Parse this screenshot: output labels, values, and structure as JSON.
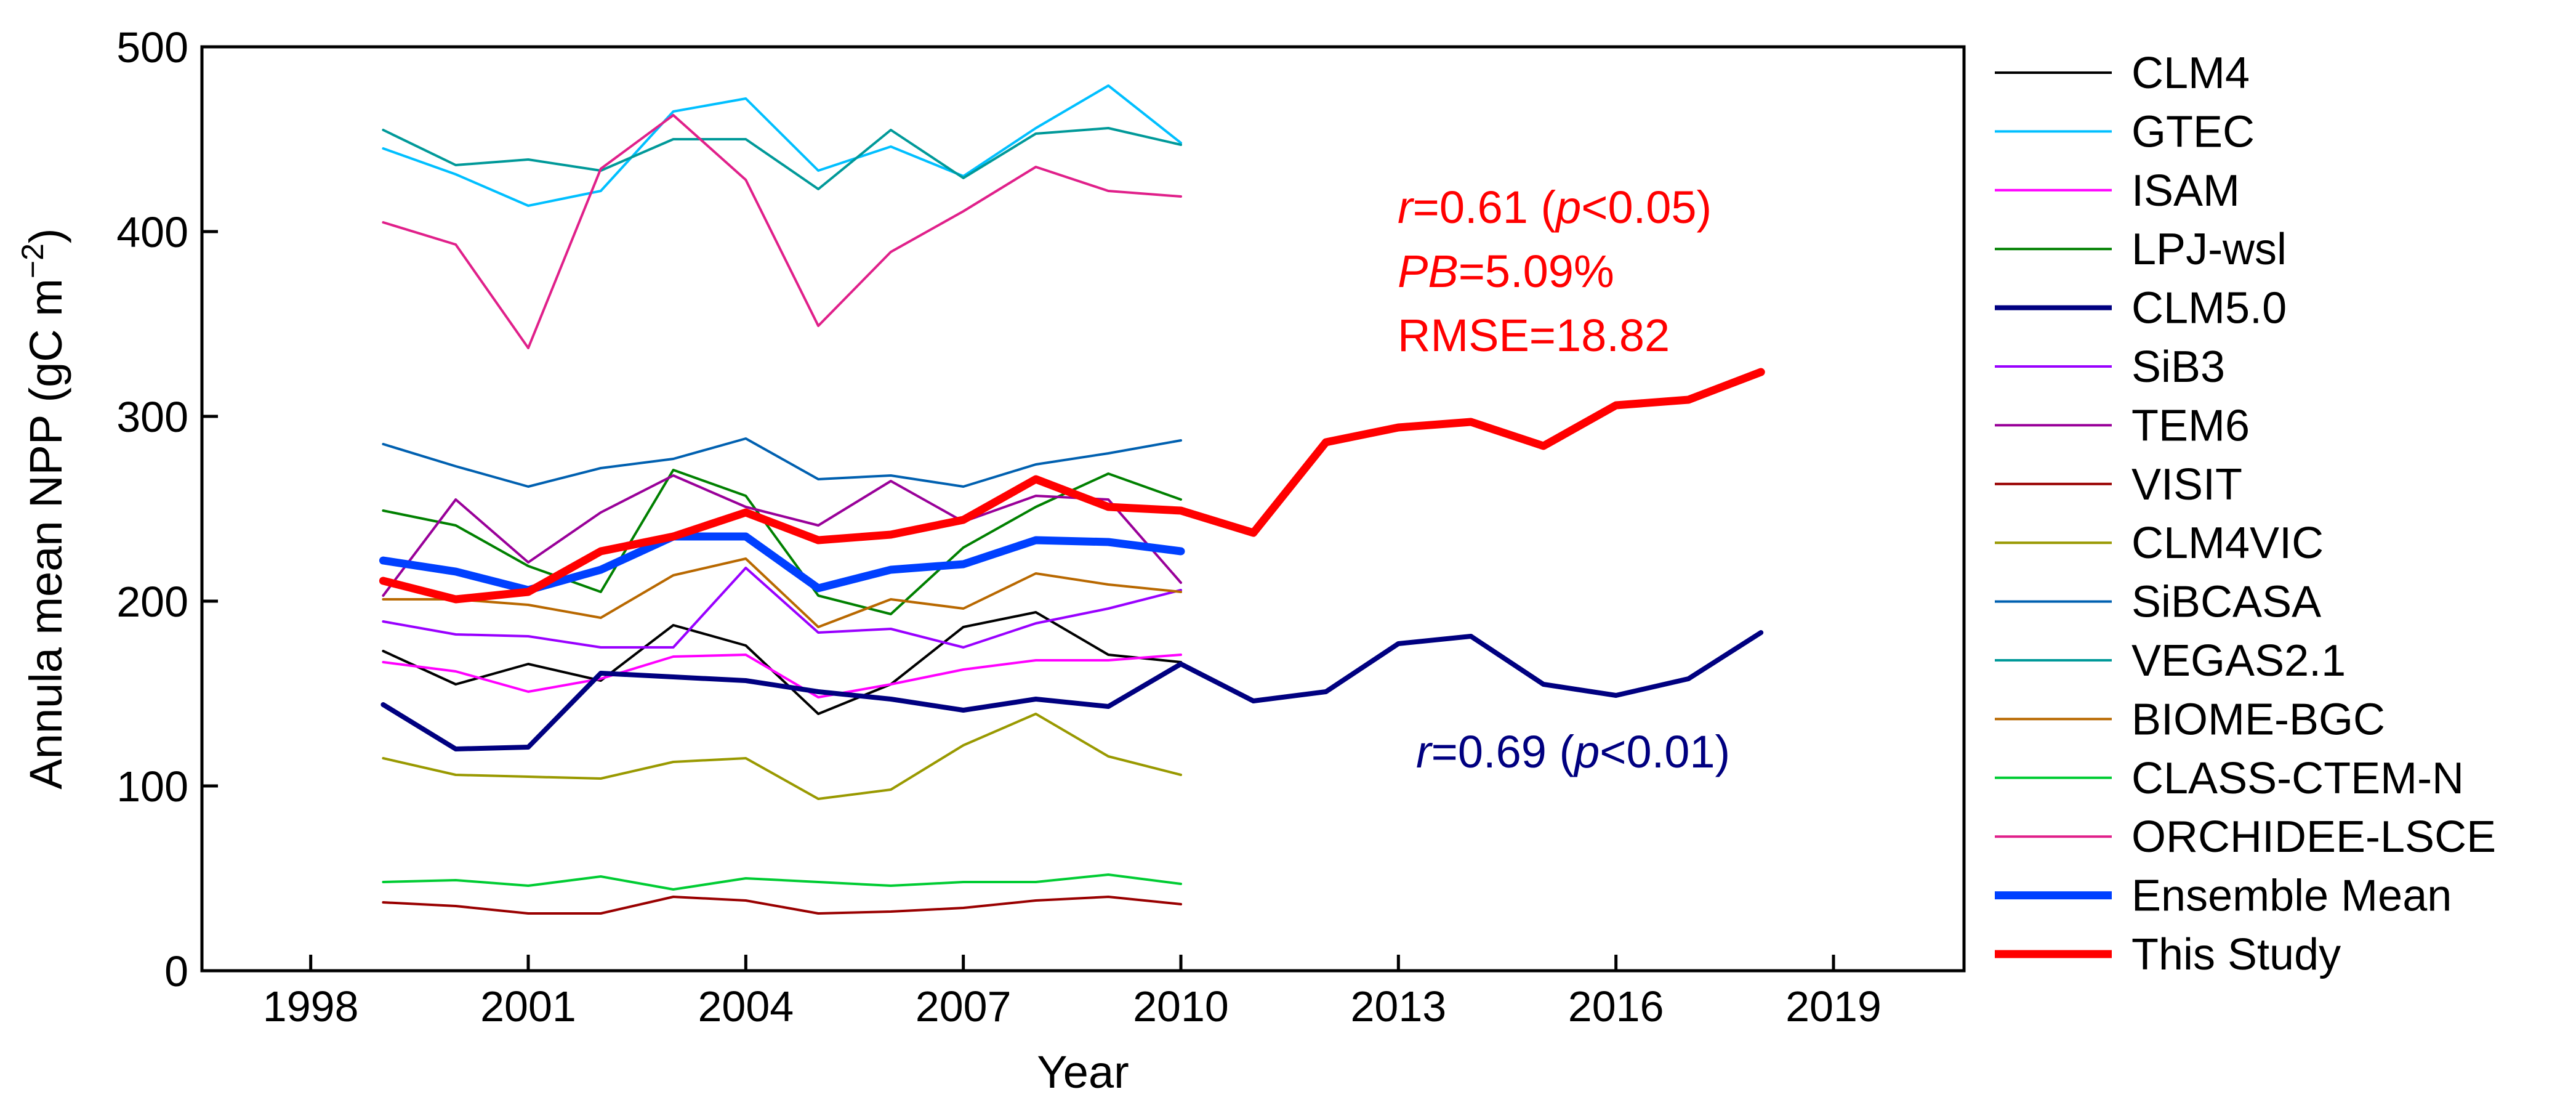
{
  "chart_data": {
    "type": "line",
    "xlabel": "Year",
    "ylabel": "Annula mean NPP (gC m",
    "ylabel_sup": "−2",
    "ylabel_close": ")",
    "xlim": [
      1996.5,
      2020.8
    ],
    "ylim": [
      0,
      500
    ],
    "xticks": [
      1998,
      2001,
      2004,
      2007,
      2010,
      2013,
      2016,
      2019
    ],
    "yticks": [
      0,
      100,
      200,
      300,
      400,
      500
    ],
    "grid": false,
    "legend_position": "right-outside",
    "annotations": [
      {
        "id": "red-r",
        "color": "#ff0000",
        "parts": [
          {
            "t": "r",
            "italic": true
          },
          {
            "t": "=0.61 ("
          },
          {
            "t": "p",
            "italic": true
          },
          {
            "t": "<0.05)"
          }
        ]
      },
      {
        "id": "red-pb",
        "color": "#ff0000",
        "parts": [
          {
            "t": "PB",
            "italic": true
          },
          {
            "t": "=5.09%"
          }
        ]
      },
      {
        "id": "red-rmse",
        "color": "#ff0000",
        "parts": [
          {
            "t": "RMSE=18.82"
          }
        ]
      },
      {
        "id": "blue-r",
        "color": "#000080",
        "parts": [
          {
            "t": "r",
            "italic": true
          },
          {
            "t": "=0.69 ("
          },
          {
            "t": "p",
            "italic": true
          },
          {
            "t": "<0.01)"
          }
        ]
      }
    ],
    "series": [
      {
        "name": "CLM4",
        "color": "#000000",
        "width": "thin",
        "x": [
          1999,
          2000,
          2001,
          2002,
          2003,
          2004,
          2005,
          2006,
          2007,
          2008,
          2009,
          2010
        ],
        "y": [
          173,
          155,
          166,
          157,
          187,
          176,
          139,
          155,
          186,
          194,
          171,
          167
        ]
      },
      {
        "name": "GTEC",
        "color": "#00bfff",
        "width": "thin",
        "x": [
          1999,
          2000,
          2001,
          2002,
          2003,
          2004,
          2005,
          2006,
          2007,
          2008,
          2009,
          2010
        ],
        "y": [
          445,
          431,
          414,
          422,
          465,
          472,
          433,
          446,
          430,
          456,
          479,
          448
        ]
      },
      {
        "name": "ISAM",
        "color": "#ff00ff",
        "width": "thin",
        "x": [
          1999,
          2000,
          2001,
          2002,
          2003,
          2004,
          2005,
          2006,
          2007,
          2008,
          2009,
          2010
        ],
        "y": [
          167,
          162,
          151,
          158,
          170,
          171,
          148,
          155,
          163,
          168,
          168,
          171
        ]
      },
      {
        "name": "LPJ-wsl",
        "color": "#008000",
        "width": "thin",
        "x": [
          1999,
          2000,
          2001,
          2002,
          2003,
          2004,
          2005,
          2006,
          2007,
          2008,
          2009,
          2010
        ],
        "y": [
          249,
          241,
          219,
          205,
          271,
          257,
          203,
          193,
          229,
          251,
          269,
          255
        ]
      },
      {
        "name": "CLM5.0",
        "color": "#000080",
        "width": "medium",
        "x": [
          1999,
          2000,
          2001,
          2002,
          2003,
          2004,
          2005,
          2006,
          2007,
          2008,
          2009,
          2010,
          2011,
          2012,
          2013,
          2014,
          2015,
          2016,
          2017,
          2018
        ],
        "y": [
          144,
          120,
          121,
          161,
          159,
          157,
          151,
          147,
          141,
          147,
          143,
          166,
          146,
          151,
          177,
          181,
          155,
          149,
          158,
          183
        ]
      },
      {
        "name": "SiB3",
        "color": "#9900ff",
        "width": "thin",
        "x": [
          1999,
          2000,
          2001,
          2002,
          2003,
          2004,
          2005,
          2006,
          2007,
          2008,
          2009,
          2010
        ],
        "y": [
          189,
          182,
          181,
          175,
          175,
          218,
          183,
          185,
          175,
          188,
          196,
          206
        ]
      },
      {
        "name": "TEM6",
        "color": "#990099",
        "width": "thin",
        "x": [
          1999,
          2000,
          2001,
          2002,
          2003,
          2004,
          2005,
          2006,
          2007,
          2008,
          2009,
          2010
        ],
        "y": [
          203,
          255,
          221,
          248,
          268,
          251,
          241,
          265,
          243,
          257,
          255,
          210
        ]
      },
      {
        "name": "VISIT",
        "color": "#990000",
        "width": "thin",
        "x": [
          1999,
          2000,
          2001,
          2002,
          2003,
          2004,
          2005,
          2006,
          2007,
          2008,
          2009,
          2010
        ],
        "y": [
          37,
          35,
          31,
          31,
          40,
          38,
          31,
          32,
          34,
          38,
          40,
          36
        ]
      },
      {
        "name": "CLM4VIC",
        "color": "#999900",
        "width": "thin",
        "x": [
          1999,
          2000,
          2001,
          2002,
          2003,
          2004,
          2005,
          2006,
          2007,
          2008,
          2009,
          2010
        ],
        "y": [
          115,
          106,
          105,
          104,
          113,
          115,
          93,
          98,
          122,
          139,
          116,
          106
        ]
      },
      {
        "name": "SiBCASA",
        "color": "#0060b0",
        "width": "thin",
        "x": [
          1999,
          2000,
          2001,
          2002,
          2003,
          2004,
          2005,
          2006,
          2007,
          2008,
          2009,
          2010
        ],
        "y": [
          285,
          273,
          262,
          272,
          277,
          288,
          266,
          268,
          262,
          274,
          280,
          287
        ]
      },
      {
        "name": "VEGAS2.1",
        "color": "#009999",
        "width": "thin",
        "x": [
          1999,
          2000,
          2001,
          2002,
          2003,
          2004,
          2005,
          2006,
          2007,
          2008,
          2009,
          2010
        ],
        "y": [
          455,
          436,
          439,
          433,
          450,
          450,
          423,
          455,
          429,
          453,
          456,
          447
        ]
      },
      {
        "name": "BIOME-BGC",
        "color": "#b86800",
        "width": "thin",
        "x": [
          1999,
          2000,
          2001,
          2002,
          2003,
          2004,
          2005,
          2006,
          2007,
          2008,
          2009,
          2010
        ],
        "y": [
          201,
          201,
          198,
          191,
          214,
          223,
          186,
          201,
          196,
          215,
          209,
          205
        ]
      },
      {
        "name": "CLASS-CTEM-N",
        "color": "#00cc33",
        "width": "thin",
        "x": [
          1999,
          2000,
          2001,
          2002,
          2003,
          2004,
          2005,
          2006,
          2007,
          2008,
          2009,
          2010
        ],
        "y": [
          48,
          49,
          46,
          51,
          44,
          50,
          48,
          46,
          48,
          48,
          52,
          47
        ]
      },
      {
        "name": "ORCHIDEE-LSCE",
        "color": "#e0208a",
        "width": "thin",
        "x": [
          1999,
          2000,
          2001,
          2002,
          2003,
          2004,
          2005,
          2006,
          2007,
          2008,
          2009,
          2010
        ],
        "y": [
          405,
          393,
          337,
          434,
          463,
          428,
          349,
          389,
          411,
          435,
          422,
          419
        ]
      },
      {
        "name": "Ensemble Mean",
        "color": "#0040ff",
        "width": "thick",
        "x": [
          1999,
          2000,
          2001,
          2002,
          2003,
          2004,
          2005,
          2006,
          2007,
          2008,
          2009,
          2010
        ],
        "y": [
          222,
          216,
          206,
          217,
          235,
          235,
          207,
          217,
          220,
          233,
          232,
          227
        ]
      },
      {
        "name": "This Study",
        "color": "#ff0000",
        "width": "thick",
        "x": [
          1999,
          2000,
          2001,
          2002,
          2003,
          2004,
          2005,
          2006,
          2007,
          2008,
          2009,
          2010,
          2011,
          2012,
          2013,
          2014,
          2015,
          2016,
          2017,
          2018
        ],
        "y": [
          211,
          201,
          205,
          227,
          235,
          248,
          233,
          236,
          244,
          266,
          251,
          249,
          237,
          286,
          294,
          297,
          284,
          306,
          309,
          324
        ]
      }
    ]
  }
}
